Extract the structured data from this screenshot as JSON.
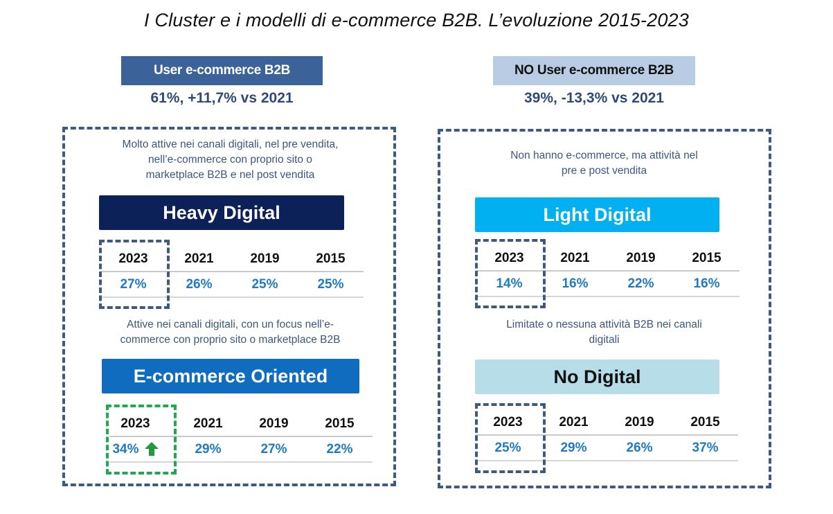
{
  "title": "I Cluster e i modelli di e-commerce B2B. L’evoluzione 2015-2023",
  "groups": {
    "user": {
      "label": "User e-commerce B2B",
      "stat": "61%, +11,7% vs 2021",
      "color": "#3b6399"
    },
    "no_user": {
      "label": "NO User e-commerce B2B",
      "stat": "39%, -13,3% vs 2021",
      "color": "#b8cce4"
    }
  },
  "clusters": {
    "heavy_digital": {
      "description_lines": [
        "Molto attive nei canali digitali, nel pre vendita,",
        "nell’e-commerce con proprio sito o",
        "marketplace B2B e nel post vendita"
      ],
      "label": "Heavy Digital",
      "color": "#0c2157",
      "years": [
        "2023",
        "2021",
        "2019",
        "2015"
      ],
      "values": [
        "27%",
        "26%",
        "25%",
        "25%"
      ]
    },
    "ecommerce_oriented": {
      "description_lines": [
        "Attive nei canali digitali,  con un focus nell’e-",
        "commerce con proprio sito o marketplace B2B"
      ],
      "label": "E-commerce Oriented",
      "color": "#0f6cbf",
      "years": [
        "2023",
        "2021",
        "2019",
        "2015"
      ],
      "values": [
        "34%",
        "29%",
        "27%",
        "22%"
      ],
      "trend_icon": "up-arrow-icon",
      "trend_color": "#1f9a3f"
    },
    "light_digital": {
      "description_lines": [
        "Non hanno e-commerce, ma attività nel",
        "pre e post vendita"
      ],
      "label": "Light Digital",
      "color": "#00b0f0",
      "years": [
        "2023",
        "2021",
        "2019",
        "2015"
      ],
      "values": [
        "14%",
        "16%",
        "22%",
        "16%"
      ]
    },
    "no_digital": {
      "description_lines": [
        "Limitate  o nessuna attività B2B nei canali",
        "digitali"
      ],
      "label": "No Digital",
      "color": "#b7dde8",
      "years": [
        "2023",
        "2021",
        "2019",
        "2015"
      ],
      "values": [
        "25%",
        "29%",
        "26%",
        "37%"
      ]
    }
  }
}
